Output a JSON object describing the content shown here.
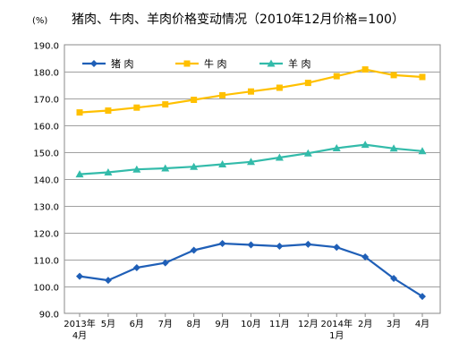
{
  "chart_data": {
    "type": "line",
    "title": "猪肉、牛肉、羊肉价格变动情况（2010年12月价格=100）",
    "unit_label": "(%)",
    "categories": [
      {
        "line1": "2013年",
        "line2": "4月"
      },
      {
        "line1": "5月",
        "line2": ""
      },
      {
        "line1": "6月",
        "line2": ""
      },
      {
        "line1": "7月",
        "line2": ""
      },
      {
        "line1": "8月",
        "line2": ""
      },
      {
        "line1": "9月",
        "line2": ""
      },
      {
        "line1": "10月",
        "line2": ""
      },
      {
        "line1": "11月",
        "line2": ""
      },
      {
        "line1": "12月",
        "line2": ""
      },
      {
        "line1": "2014年",
        "line2": "1月"
      },
      {
        "line1": "2月",
        "line2": ""
      },
      {
        "line1": "3月",
        "line2": ""
      },
      {
        "line1": "4月",
        "line2": ""
      }
    ],
    "ylim": [
      90,
      190
    ],
    "yticks": [
      "90.0",
      "100.0",
      "110.0",
      "120.0",
      "130.0",
      "140.0",
      "150.0",
      "160.0",
      "170.0",
      "180.0",
      "190.0"
    ],
    "grid": true,
    "legend_position": "top-left",
    "series": [
      {
        "name": "猪    肉",
        "color": "#1F5FB7",
        "marker": "diamond",
        "values": [
          103.8,
          102.3,
          107.0,
          108.8,
          113.5,
          116.0,
          115.5,
          115.0,
          115.7,
          114.6,
          111.0,
          103.0,
          96.3
        ]
      },
      {
        "name": "牛    肉",
        "color": "#FFC000",
        "marker": "square",
        "values": [
          164.8,
          165.5,
          166.6,
          167.8,
          169.5,
          171.2,
          172.6,
          174.0,
          175.8,
          178.3,
          180.8,
          178.7,
          178.0
        ]
      },
      {
        "name": "羊    肉",
        "color": "#33BBAA",
        "marker": "triangle",
        "values": [
          141.8,
          142.5,
          143.6,
          144.0,
          144.6,
          145.5,
          146.4,
          148.0,
          149.6,
          151.5,
          152.8,
          151.4,
          150.4
        ]
      }
    ]
  }
}
